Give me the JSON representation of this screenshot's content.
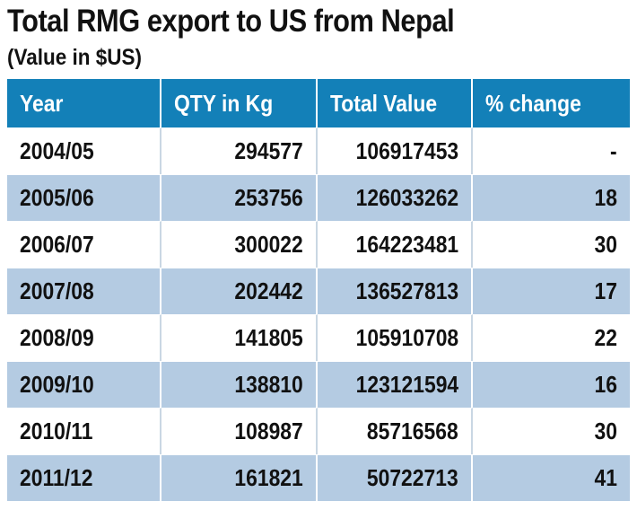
{
  "title": "Total RMG export to US from Nepal",
  "subtitle": "(Value in $US)",
  "colors": {
    "header_bg": "#1380b8",
    "header_text": "#ffffff",
    "row_alt_bg": "#b4cbe2",
    "row_bg": "#ffffff"
  },
  "chart_data": {
    "type": "table",
    "title": "Total RMG export to US from Nepal",
    "subtitle": "(Value in $US)",
    "columns": [
      "Year",
      "QTY in Kg",
      "Total Value",
      "% change"
    ],
    "rows": [
      [
        "2004/05",
        "294577",
        "106917453",
        "-"
      ],
      [
        "2005/06",
        "253756",
        "126033262",
        "18"
      ],
      [
        "2006/07",
        "300022",
        "164223481",
        "30"
      ],
      [
        "2007/08",
        "202442",
        "136527813",
        "17"
      ],
      [
        "2008/09",
        "141805",
        "105910708",
        "22"
      ],
      [
        "2009/10",
        "138810",
        "123121594",
        "16"
      ],
      [
        "2010/11",
        "108987",
        "85716568",
        "30"
      ],
      [
        "2011/12",
        "161821",
        "50722713",
        "41"
      ]
    ]
  }
}
